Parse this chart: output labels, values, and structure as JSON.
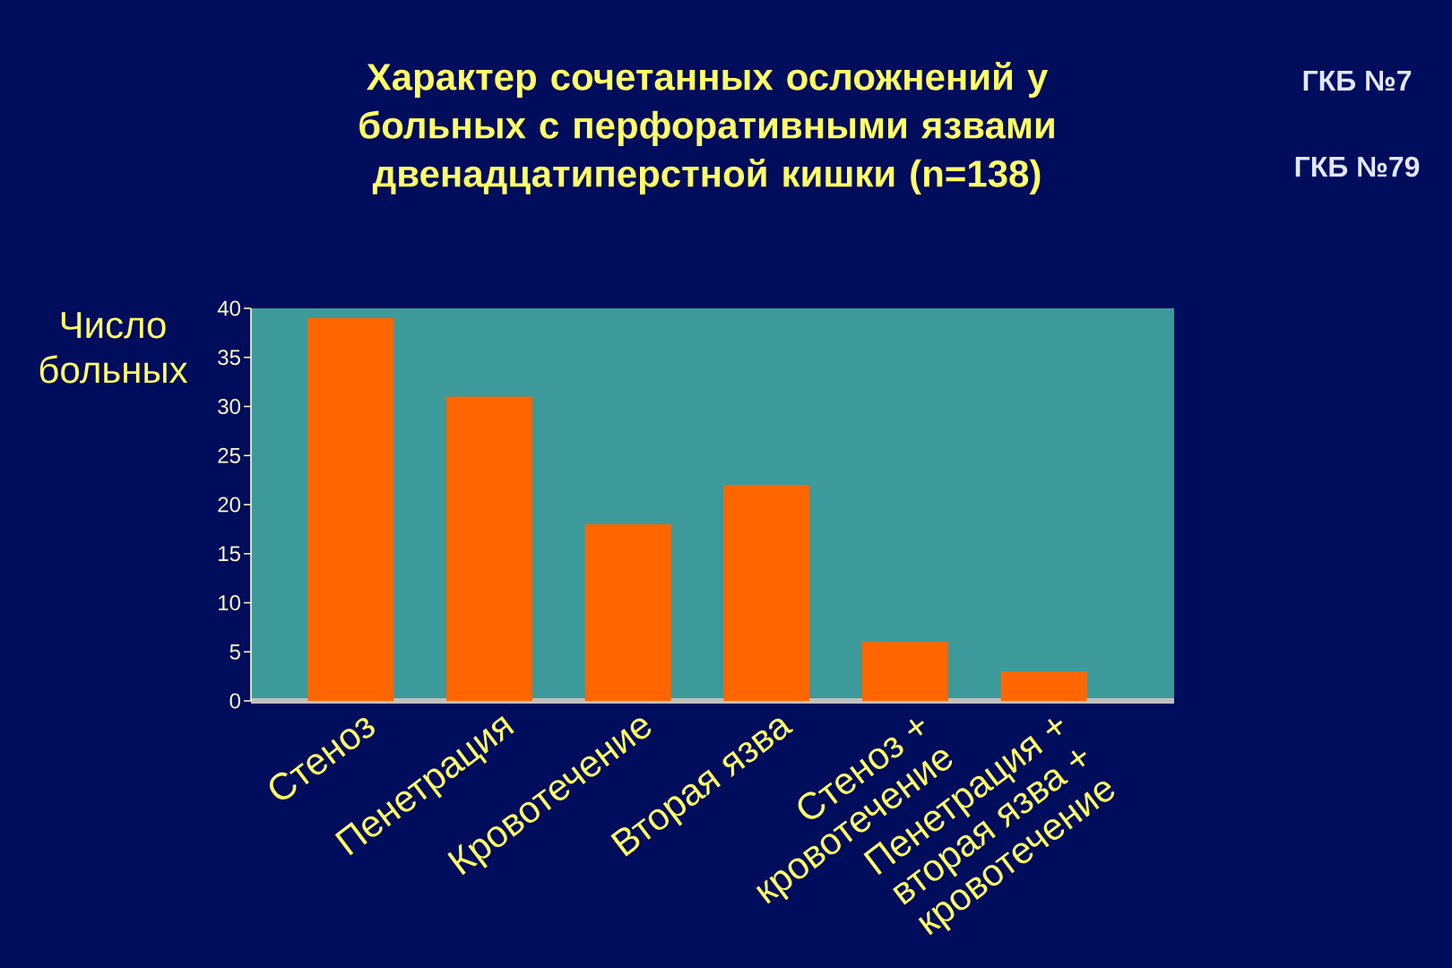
{
  "chart_data": {
    "type": "bar",
    "title": "Характер сочетанных осложнений у больных с перфоративными язвами двенадцатиперстной кишки (n=138)",
    "ylabel": "Число больных",
    "categories": [
      "Стеноз",
      "Пенетрация",
      "Кровотечение",
      "Вторая язва",
      "Стеноз + кровотечение",
      "Пенетрация + вторая язва + кровотечение"
    ],
    "values": [
      39,
      31,
      18,
      22,
      6,
      3
    ],
    "color": "#ff6600",
    "ylim": [
      0,
      40
    ],
    "yticks": [
      0,
      5,
      10,
      15,
      20,
      25,
      30,
      35,
      40
    ],
    "annotations": [
      "ГКБ №7",
      "ГКБ №79"
    ]
  }
}
